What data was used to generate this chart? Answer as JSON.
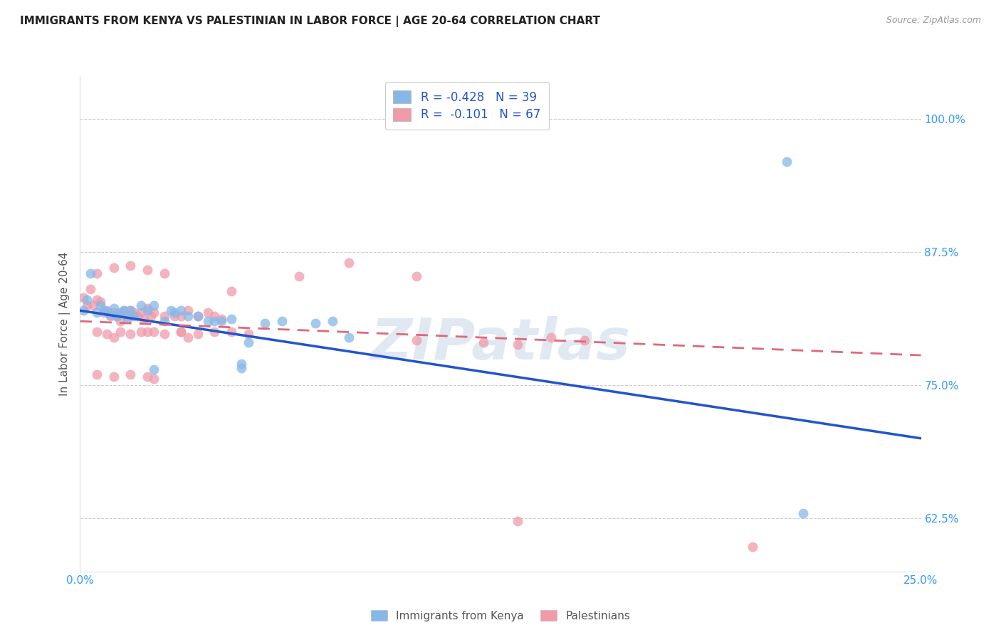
{
  "title": "IMMIGRANTS FROM KENYA VS PALESTINIAN IN LABOR FORCE | AGE 20-64 CORRELATION CHART",
  "source": "Source: ZipAtlas.com",
  "ylabel": "In Labor Force | Age 20-64",
  "ytick_labels": [
    "62.5%",
    "75.0%",
    "87.5%",
    "100.0%"
  ],
  "ytick_values": [
    0.625,
    0.75,
    0.875,
    1.0
  ],
  "xlim": [
    0.0,
    0.25
  ],
  "ylim": [
    0.575,
    1.04
  ],
  "legend_R_color": "#2255cc",
  "kenya_color": "#85b8e8",
  "palestinian_color": "#f09aaa",
  "kenya_line_color": "#2255cc",
  "palestinian_line_color": "#e06878",
  "watermark": "ZIPatlas",
  "watermark_color": "#c8d8e8",
  "kenya_points": [
    [
      0.001,
      0.82
    ],
    [
      0.002,
      0.83
    ],
    [
      0.003,
      0.855
    ],
    [
      0.005,
      0.818
    ],
    [
      0.006,
      0.825
    ],
    [
      0.007,
      0.82
    ],
    [
      0.008,
      0.819
    ],
    [
      0.009,
      0.816
    ],
    [
      0.01,
      0.822
    ],
    [
      0.011,
      0.815
    ],
    [
      0.012,
      0.818
    ],
    [
      0.013,
      0.82
    ],
    [
      0.014,
      0.812
    ],
    [
      0.015,
      0.82
    ],
    [
      0.016,
      0.815
    ],
    [
      0.018,
      0.825
    ],
    [
      0.02,
      0.82
    ],
    [
      0.022,
      0.825
    ],
    [
      0.025,
      0.81
    ],
    [
      0.027,
      0.82
    ],
    [
      0.028,
      0.818
    ],
    [
      0.03,
      0.82
    ],
    [
      0.032,
      0.815
    ],
    [
      0.035,
      0.815
    ],
    [
      0.038,
      0.81
    ],
    [
      0.04,
      0.81
    ],
    [
      0.042,
      0.81
    ],
    [
      0.045,
      0.812
    ],
    [
      0.05,
      0.79
    ],
    [
      0.055,
      0.808
    ],
    [
      0.06,
      0.81
    ],
    [
      0.07,
      0.808
    ],
    [
      0.075,
      0.81
    ],
    [
      0.08,
      0.795
    ],
    [
      0.022,
      0.765
    ],
    [
      0.048,
      0.77
    ],
    [
      0.048,
      0.766
    ],
    [
      0.21,
      0.96
    ],
    [
      0.215,
      0.63
    ]
  ],
  "palestinian_points": [
    [
      0.001,
      0.832
    ],
    [
      0.002,
      0.825
    ],
    [
      0.003,
      0.84
    ],
    [
      0.004,
      0.825
    ],
    [
      0.005,
      0.83
    ],
    [
      0.006,
      0.828
    ],
    [
      0.007,
      0.818
    ],
    [
      0.008,
      0.82
    ],
    [
      0.009,
      0.815
    ],
    [
      0.01,
      0.818
    ],
    [
      0.011,
      0.815
    ],
    [
      0.012,
      0.81
    ],
    [
      0.013,
      0.82
    ],
    [
      0.014,
      0.815
    ],
    [
      0.015,
      0.82
    ],
    [
      0.016,
      0.818
    ],
    [
      0.017,
      0.815
    ],
    [
      0.018,
      0.818
    ],
    [
      0.019,
      0.812
    ],
    [
      0.02,
      0.822
    ],
    [
      0.021,
      0.815
    ],
    [
      0.022,
      0.818
    ],
    [
      0.025,
      0.815
    ],
    [
      0.028,
      0.815
    ],
    [
      0.03,
      0.815
    ],
    [
      0.032,
      0.82
    ],
    [
      0.035,
      0.815
    ],
    [
      0.038,
      0.818
    ],
    [
      0.04,
      0.815
    ],
    [
      0.042,
      0.812
    ],
    [
      0.005,
      0.8
    ],
    [
      0.008,
      0.798
    ],
    [
      0.01,
      0.795
    ],
    [
      0.012,
      0.8
    ],
    [
      0.015,
      0.798
    ],
    [
      0.018,
      0.8
    ],
    [
      0.02,
      0.8
    ],
    [
      0.022,
      0.8
    ],
    [
      0.025,
      0.798
    ],
    [
      0.03,
      0.8
    ],
    [
      0.032,
      0.795
    ],
    [
      0.035,
      0.798
    ],
    [
      0.04,
      0.8
    ],
    [
      0.045,
      0.8
    ],
    [
      0.05,
      0.798
    ],
    [
      0.005,
      0.855
    ],
    [
      0.01,
      0.86
    ],
    [
      0.015,
      0.862
    ],
    [
      0.02,
      0.858
    ],
    [
      0.025,
      0.855
    ],
    [
      0.005,
      0.76
    ],
    [
      0.01,
      0.758
    ],
    [
      0.015,
      0.76
    ],
    [
      0.02,
      0.758
    ],
    [
      0.022,
      0.756
    ],
    [
      0.03,
      0.8
    ],
    [
      0.065,
      0.852
    ],
    [
      0.1,
      0.852
    ],
    [
      0.045,
      0.838
    ],
    [
      0.08,
      0.865
    ],
    [
      0.1,
      0.792
    ],
    [
      0.12,
      0.79
    ],
    [
      0.13,
      0.788
    ],
    [
      0.14,
      0.795
    ],
    [
      0.15,
      0.792
    ],
    [
      0.13,
      0.622
    ],
    [
      0.2,
      0.598
    ]
  ],
  "kenya_line_x": [
    0.0,
    0.25
  ],
  "kenya_line_y": [
    0.82,
    0.7
  ],
  "palestinian_line_x": [
    0.0,
    0.25
  ],
  "palestinian_line_y": [
    0.81,
    0.778
  ]
}
